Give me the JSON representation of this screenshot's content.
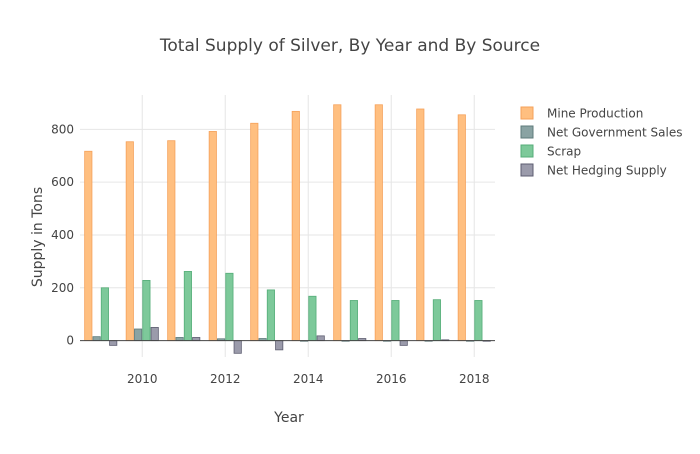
{
  "chart_data": {
    "type": "bar",
    "title": "Total Supply of Silver, By Year and By Source",
    "xlabel": "Year",
    "ylabel": "Supply in Tons",
    "categories": [
      2009,
      2010,
      2011,
      2012,
      2013,
      2014,
      2015,
      2016,
      2017,
      2018
    ],
    "xticks": [
      2010,
      2012,
      2014,
      2016,
      2018
    ],
    "yticks": [
      0,
      200,
      400,
      600,
      800
    ],
    "ylim": [
      -62,
      930
    ],
    "grid": true,
    "legend_position": "right",
    "series": [
      {
        "name": "Mine Production",
        "color": "#ffbf80",
        "edge": "#f5a15a",
        "values": [
          717,
          753,
          757,
          792,
          823,
          868,
          893,
          893,
          877,
          855
        ]
      },
      {
        "name": "Net Government Sales",
        "color": "#8aa3a3",
        "edge": "#5f7b7b",
        "values": [
          15,
          44,
          12,
          7,
          8,
          0,
          0,
          0,
          0,
          0
        ]
      },
      {
        "name": "Scrap",
        "color": "#7dc99a",
        "edge": "#55ad78",
        "values": [
          200,
          228,
          262,
          255,
          192,
          168,
          152,
          152,
          155,
          152
        ]
      },
      {
        "name": "Net Hedging Supply",
        "color": "#9b9bab",
        "edge": "#5d5d70",
        "values": [
          -18,
          50,
          12,
          -48,
          -35,
          18,
          8,
          -18,
          3,
          -2
        ]
      }
    ]
  }
}
